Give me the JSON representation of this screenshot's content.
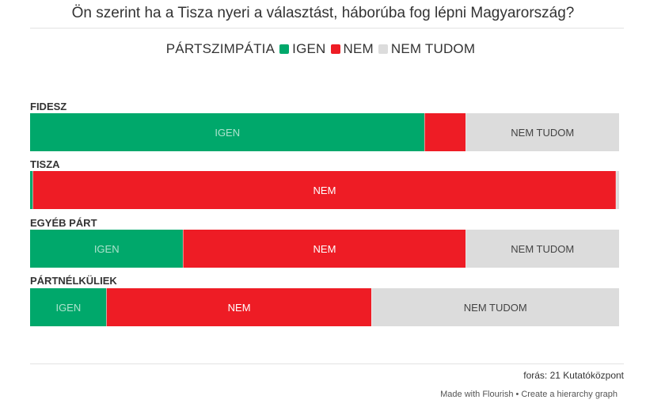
{
  "title": "Ön szerint ha a Tisza nyeri a választást, háborúba fog lépni Magyarország?",
  "legend": {
    "title": "PÁRTSZIMPÁTIA",
    "items": [
      {
        "label": "IGEN",
        "color": "#00a86b"
      },
      {
        "label": "NEM",
        "color": "#ee1c25"
      },
      {
        "label": "NEM TUDOM",
        "color": "#dcdcdc"
      }
    ]
  },
  "chart_data": {
    "type": "bar",
    "orientation": "horizontal",
    "stacked": true,
    "scale": "percent",
    "categories": [
      "FIDESZ",
      "TISZA",
      "EGYÉB PÁRT",
      "PÁRTNÉLKÜLIEK"
    ],
    "series": [
      {
        "name": "IGEN",
        "color": "#00a86b",
        "values": [
          67,
          0.5,
          26,
          13
        ]
      },
      {
        "name": "NEM",
        "color": "#ee1c25",
        "values": [
          7,
          99,
          48,
          45
        ]
      },
      {
        "name": "NEM TUDOM",
        "color": "#dcdcdc",
        "values": [
          26,
          0.5,
          26,
          42
        ]
      }
    ],
    "segment_labels": [
      [
        "IGEN",
        "",
        "NEM TUDOM"
      ],
      [
        "",
        "NEM",
        ""
      ],
      [
        "IGEN",
        "NEM",
        "NEM TUDOM"
      ],
      [
        "IGEN",
        "NEM",
        "NEM TUDOM"
      ]
    ]
  },
  "footer": {
    "source": "forás: 21 Kutatóközpont",
    "made_with": "Made with Flourish",
    "separator": "•",
    "cta": "Create a hierarchy graph"
  }
}
